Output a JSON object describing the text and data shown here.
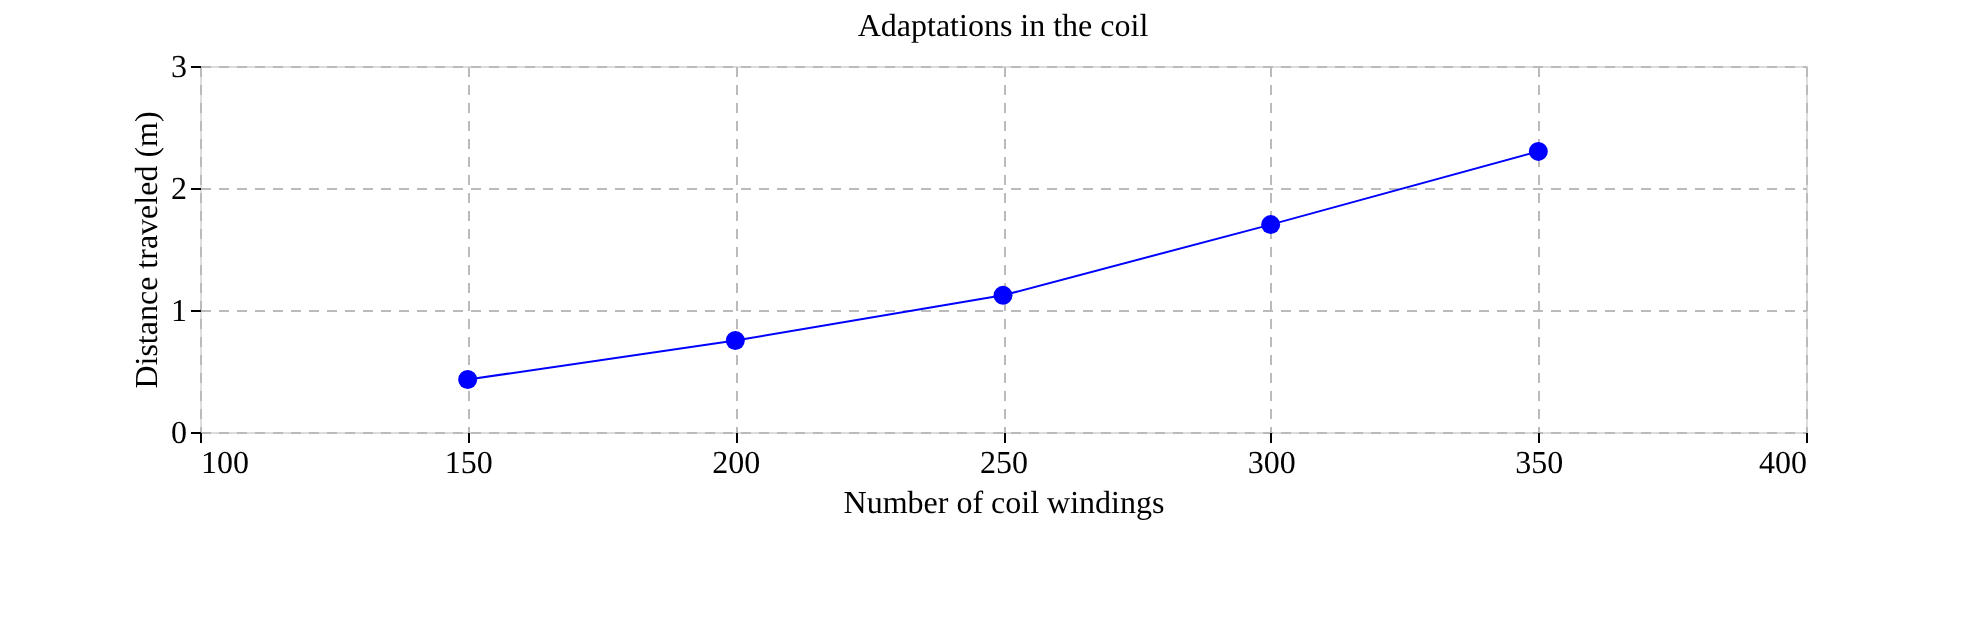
{
  "chart_data": {
    "type": "line",
    "title": "Adaptations in the coil",
    "xlabel": "Number of coil windings",
    "ylabel": "Distance traveled (m)",
    "x": [
      150,
      200,
      250,
      300,
      350
    ],
    "series": [
      {
        "color": "#0000ff",
        "values": [
          0.43,
          0.75,
          1.12,
          1.7,
          2.3
        ]
      }
    ],
    "xlim": [
      100,
      400
    ],
    "xticks": [
      100,
      150,
      200,
      250,
      300,
      350,
      400
    ],
    "ylim": [
      0,
      3
    ],
    "yticks": [
      0,
      1,
      2,
      3
    ],
    "grid": true,
    "marker": "circle",
    "line_style": "solid"
  }
}
